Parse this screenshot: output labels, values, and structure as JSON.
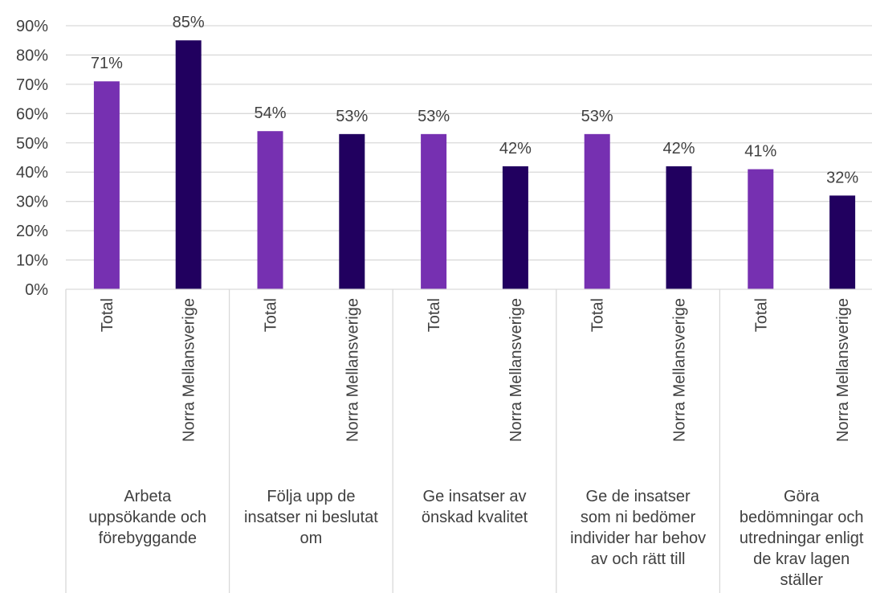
{
  "chart_data": {
    "type": "bar",
    "title": "",
    "xlabel": "",
    "ylabel": "",
    "ylim": [
      0,
      0.9
    ],
    "ytick_labels": [
      "0%",
      "10%",
      "20%",
      "30%",
      "40%",
      "50%",
      "60%",
      "70%",
      "80%",
      "90%"
    ],
    "grid": true,
    "legend": "none",
    "colors": {
      "Total": "#7630b1",
      "Norra Mellansverige": "#21005f"
    },
    "groups": [
      {
        "label": "Arbeta uppsökande och förebyggande",
        "label_lines": [
          "Arbeta",
          "uppsökande och",
          "förebyggande"
        ],
        "bars": [
          {
            "category": "Total",
            "value": 0.71,
            "label": "71%"
          },
          {
            "category": "Norra Mellansverige",
            "value": 0.85,
            "label": "85%"
          }
        ]
      },
      {
        "label": "Följa upp de insatser ni beslutat om",
        "label_lines": [
          "Följa upp de",
          "insatser ni beslutat",
          "om"
        ],
        "bars": [
          {
            "category": "Total",
            "value": 0.54,
            "label": "54%"
          },
          {
            "category": "Norra Mellansverige",
            "value": 0.53,
            "label": "53%"
          }
        ]
      },
      {
        "label": "Ge insatser av önskad kvalitet",
        "label_lines": [
          "Ge insatser av",
          "önskad kvalitet"
        ],
        "bars": [
          {
            "category": "Total",
            "value": 0.53,
            "label": "53%"
          },
          {
            "category": "Norra Mellansverige",
            "value": 0.42,
            "label": "42%"
          }
        ]
      },
      {
        "label": "Ge de insatser som ni bedömer individer har behov av och rätt till",
        "label_lines": [
          "Ge de insatser",
          "som ni bedömer",
          "individer har behov",
          "av och rätt till"
        ],
        "bars": [
          {
            "category": "Total",
            "value": 0.53,
            "label": "53%"
          },
          {
            "category": "Norra Mellansverige",
            "value": 0.42,
            "label": "42%"
          }
        ]
      },
      {
        "label": "Göra bedömningar och utredningar enligt de krav lagen ställer",
        "label_lines": [
          "Göra",
          "bedömningar och",
          "utredningar enligt",
          "de krav lagen",
          "ställer"
        ],
        "bars": [
          {
            "category": "Total",
            "value": 0.41,
            "label": "41%"
          },
          {
            "category": "Norra Mellansverige",
            "value": 0.32,
            "label": "32%"
          }
        ]
      }
    ]
  }
}
